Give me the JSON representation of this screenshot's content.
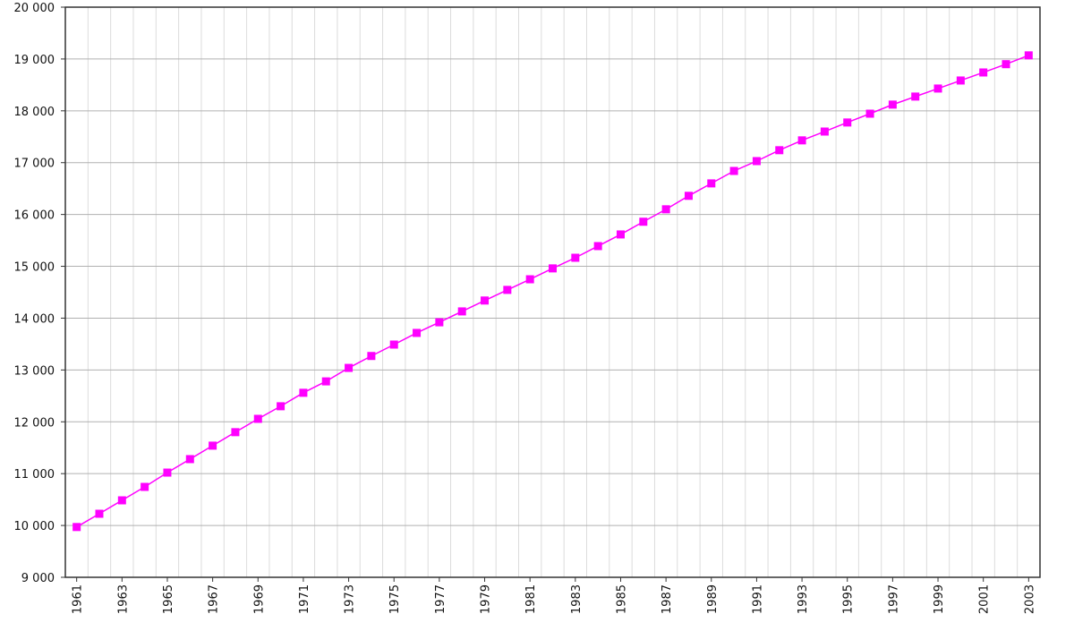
{
  "chart_data": {
    "type": "line",
    "x": [
      1961,
      1962,
      1963,
      1964,
      1965,
      1966,
      1967,
      1968,
      1969,
      1970,
      1971,
      1972,
      1973,
      1974,
      1975,
      1976,
      1977,
      1978,
      1979,
      1980,
      1981,
      1982,
      1983,
      1984,
      1985,
      1986,
      1987,
      1988,
      1989,
      1990,
      1991,
      1992,
      1993,
      1994,
      1995,
      1996,
      1997,
      1998,
      1999,
      2000,
      2001,
      2002,
      2003
    ],
    "series": [
      {
        "color": "#ff00ff",
        "values": [
          9970,
          10226,
          10485,
          10744,
          11020,
          11280,
          11540,
          11800,
          12057,
          12300,
          12560,
          12780,
          13040,
          13270,
          13490,
          13715,
          13920,
          14130,
          14340,
          14545,
          14750,
          14960,
          15165,
          15390,
          15615,
          15860,
          16100,
          16360,
          16600,
          16840,
          17030,
          17240,
          17430,
          17600,
          17775,
          17945,
          18120,
          18275,
          18430,
          18585,
          18740,
          18900,
          19070
        ]
      }
    ],
    "xlim": [
      1960.5,
      2003.5
    ],
    "xticks": [
      1961,
      1963,
      1965,
      1967,
      1969,
      1971,
      1973,
      1975,
      1977,
      1979,
      1981,
      1983,
      1985,
      1987,
      1989,
      1991,
      1993,
      1995,
      1997,
      1999,
      2001,
      2003
    ],
    "ylim": [
      9000,
      20000
    ],
    "yticks": [
      {
        "value": 9000,
        "label": "9 000"
      },
      {
        "value": 10000,
        "label": "10 000"
      },
      {
        "value": 11000,
        "label": "11 000"
      },
      {
        "value": 12000,
        "label": "12 000"
      },
      {
        "value": 13000,
        "label": "13 000"
      },
      {
        "value": 14000,
        "label": "14 000"
      },
      {
        "value": 15000,
        "label": "15 000"
      },
      {
        "value": 16000,
        "label": "16 000"
      },
      {
        "value": 17000,
        "label": "17 000"
      },
      {
        "value": 18000,
        "label": "18 000"
      },
      {
        "value": 19000,
        "label": "19 000"
      },
      {
        "value": 20000,
        "label": "20 000"
      }
    ],
    "grid": true
  }
}
